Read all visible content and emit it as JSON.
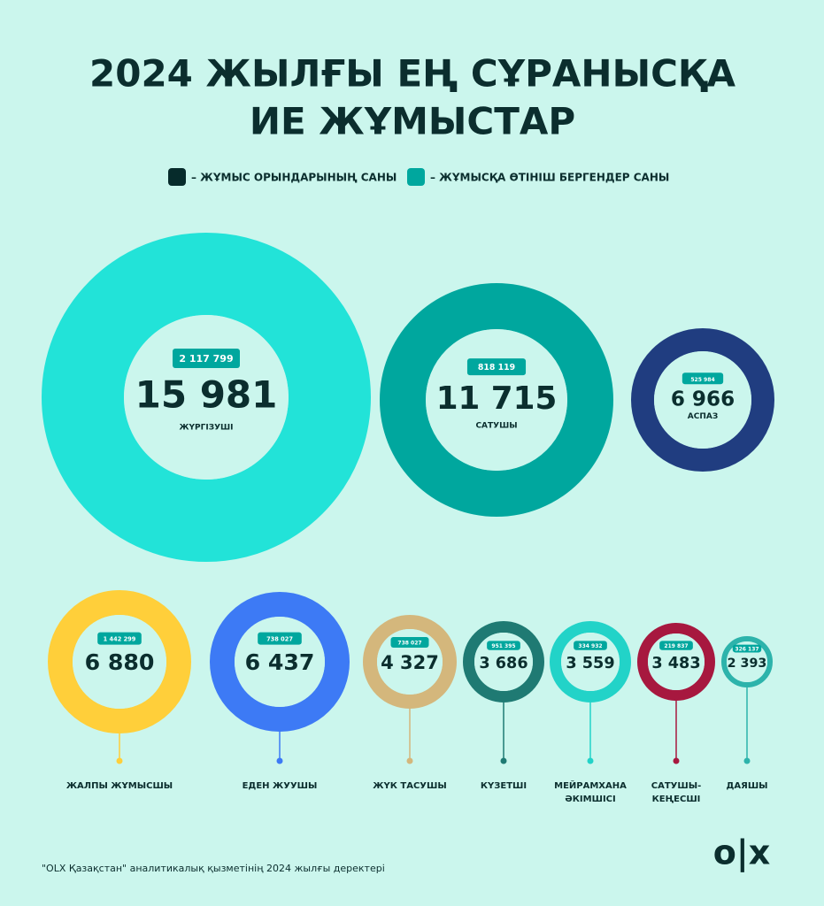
{
  "header": {
    "title_lines": [
      "2024 ЖЫЛҒЫ ЕҢ СҰРАНЫСҚА",
      "ИЕ ЖҰМЫСТАР"
    ]
  },
  "legend": [
    "– ЖҰМЫС ОРЫНДАРЫНЫҢ САНЫ",
    "– ЖҰМЫСҚА ӨТІНІШ БЕРГЕНДЕР САНЫ"
  ],
  "items": [
    {
      "applicants": "2 117 799",
      "jobs": "15 981",
      "label": [
        "ЖҮРГІЗУШІ"
      ]
    },
    {
      "applicants": "818 119",
      "jobs": "11 715",
      "label": [
        "САТУШЫ"
      ]
    },
    {
      "applicants": "525 984",
      "jobs": "6 966",
      "label": [
        "АСПАЗ"
      ]
    },
    {
      "applicants": "1 442 299",
      "jobs": "6 880",
      "label": [
        "ЖАЛПЫ ЖҰМЫСШЫ"
      ]
    },
    {
      "applicants": "738 027",
      "jobs": "6 437",
      "label": [
        "ЕДЕН ЖУУШЫ"
      ]
    },
    {
      "applicants": "738 027",
      "jobs": "4 327",
      "label": [
        "ЖҮК ТАСУШЫ"
      ]
    },
    {
      "applicants": "951 395",
      "jobs": "3 686",
      "label": [
        "КҮЗЕТШІ"
      ]
    },
    {
      "applicants": "334 932",
      "jobs": "3 559",
      "label": [
        "МЕЙРАМХАНА",
        "ӘКІМШІСІ"
      ]
    },
    {
      "applicants": "219 837",
      "jobs": "3 483",
      "label": [
        "САТУШЫ-",
        "КЕҢЕСШІ"
      ]
    },
    {
      "applicants": "326 137",
      "jobs": "2 393",
      "label": [
        "ДАЯШЫ"
      ]
    }
  ],
  "footer": {
    "source": "\"OLX Қазақстан\" аналитикалық қызметінің 2024 жылғы деректері",
    "logo": "o|x"
  }
}
